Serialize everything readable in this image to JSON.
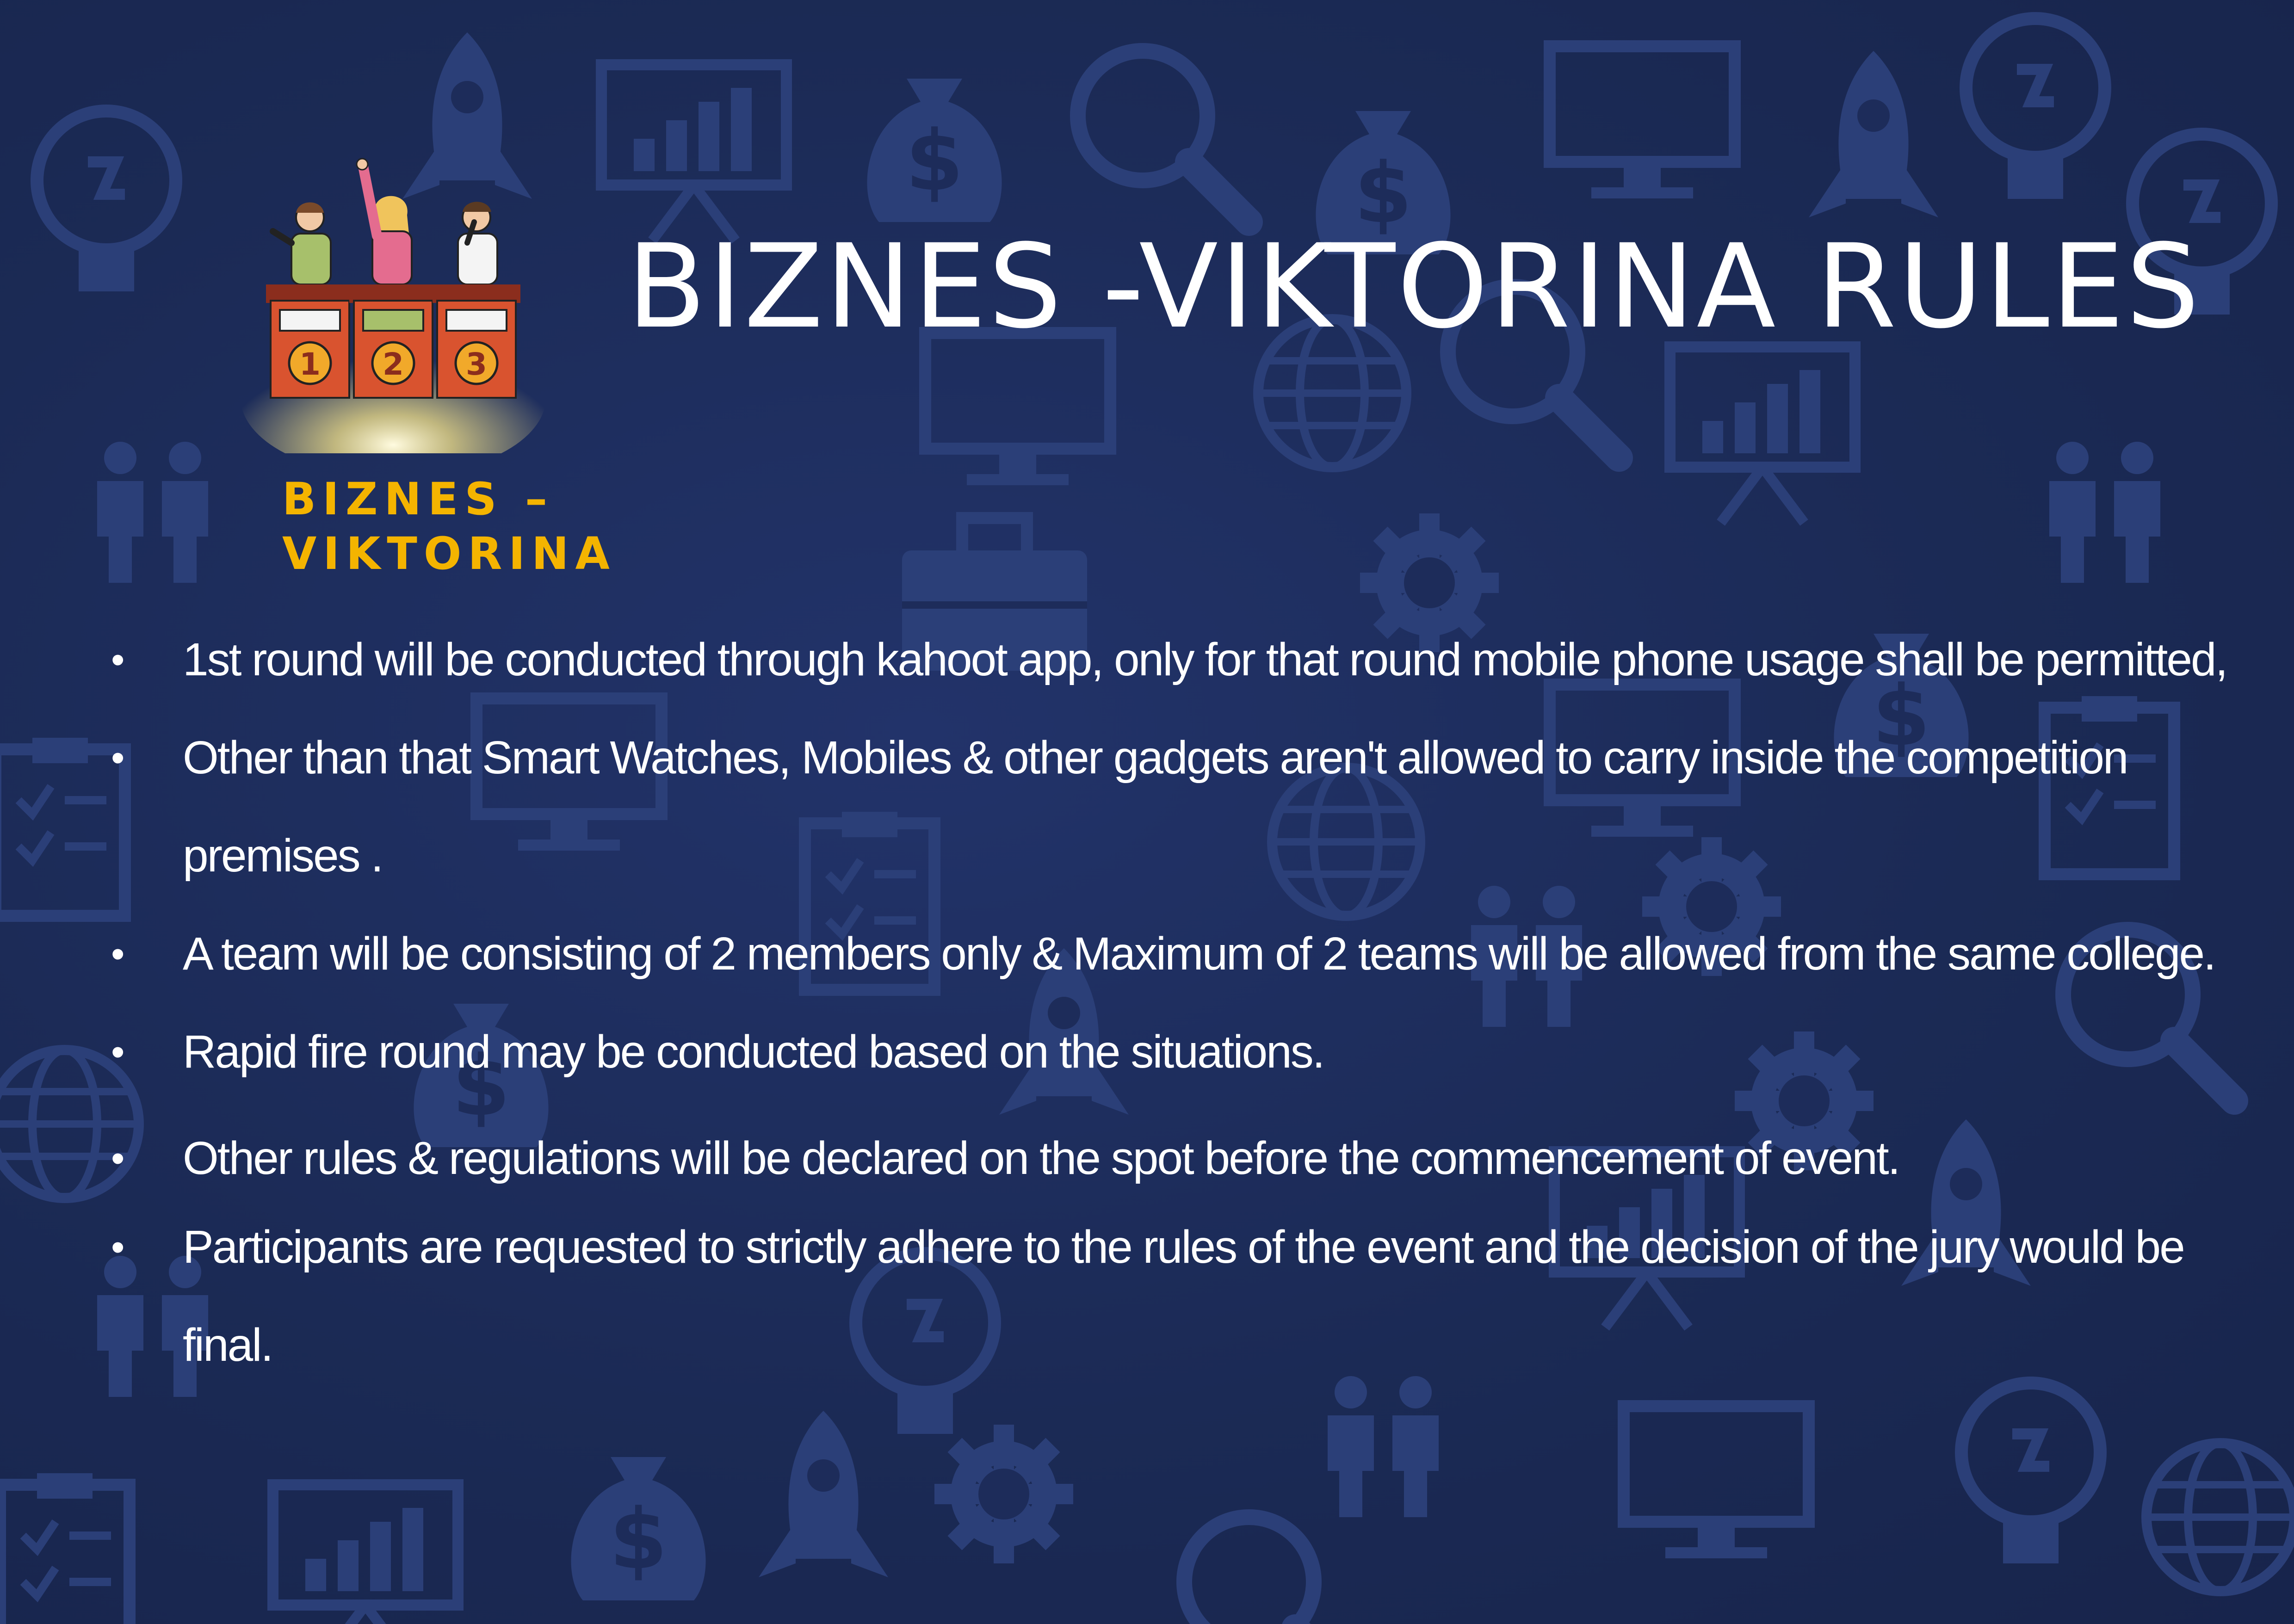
{
  "title": "BIZNES -VIKTORINA RULES",
  "logo": {
    "line1": "BIZNES –",
    "line2": "VIKTORINA",
    "podium_numbers": [
      "1",
      "2",
      "3"
    ]
  },
  "rules": [
    "1st round will be conducted through kahoot app, only for that round mobile phone usage shall be permitted,",
    "Other than that Smart Watches, Mobiles & other gadgets aren't allowed to carry inside the competition premises .",
    "A team will be consisting of 2 members only & Maximum of 2 teams will be allowed from the same college.",
    "Rapid fire round may be conducted based on the situations.",
    "Other rules & regulations will be declared on the spot before the commencement of event.",
    "Participants are requested to strictly adhere to the rules of the event and the decision of the jury would be final."
  ],
  "colors": {
    "background": "#1b2a55",
    "title": "#ffffff",
    "logo_text": "#f4b400",
    "pattern": "#2b3f78"
  },
  "icons": [
    "light-bulb-icon",
    "rocket-icon",
    "money-bag-icon",
    "magnifier-icon",
    "globe-icon",
    "gear-icon",
    "people-icon",
    "monitor-icon",
    "clipboard-icon",
    "briefcase-icon",
    "chart-board-icon"
  ]
}
